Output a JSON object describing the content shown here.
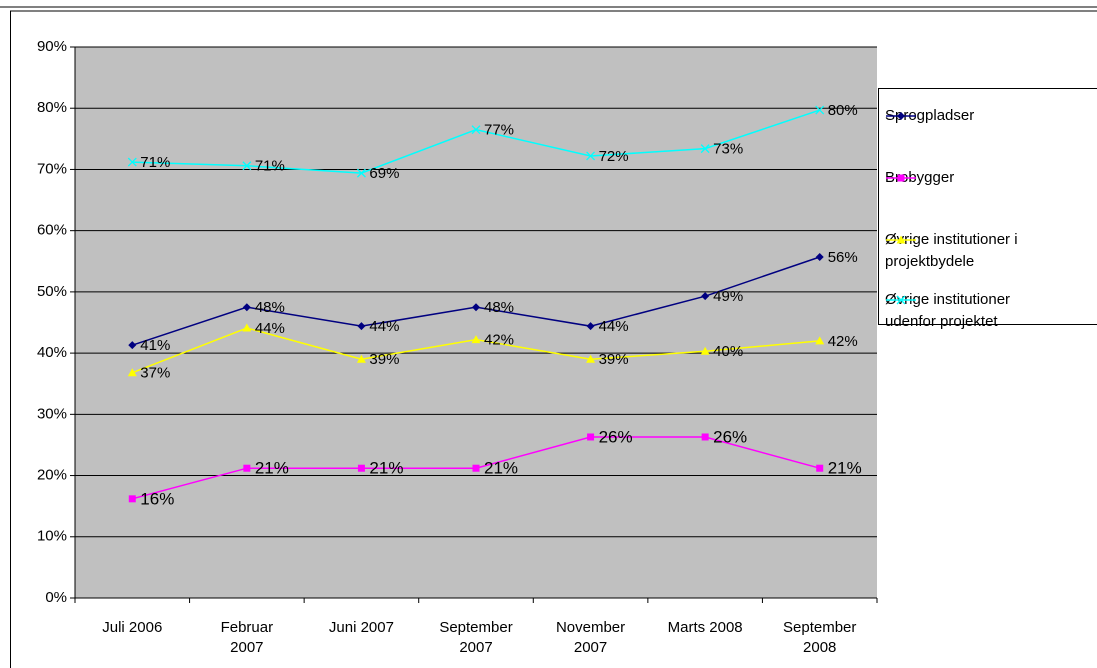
{
  "chart_data": {
    "type": "line",
    "categories": [
      "Juli 2006",
      "Februar 2007",
      "Juni 2007",
      "September 2007",
      "November 2007",
      "Marts 2008",
      "September 2008"
    ],
    "series": [
      {
        "name": "Sprogpladser",
        "color": "#000080",
        "marker": "diamond",
        "values": [
          41.3,
          47.5,
          44.4,
          47.5,
          44.4,
          49.3,
          55.7
        ],
        "value_labels": [
          "41%",
          "48%",
          "44%",
          "48%",
          "44%",
          "49%",
          "56%"
        ]
      },
      {
        "name": "Brobygger",
        "color": "#ff00ff",
        "marker": "square",
        "values": [
          16.2,
          21.2,
          21.2,
          21.2,
          26.3,
          26.3,
          21.2
        ],
        "value_labels": [
          "16%",
          "21%",
          "21%",
          "21%",
          "26%",
          "26%",
          "21%"
        ]
      },
      {
        "name": "Øvrige institutioner i projektbydele",
        "color": "#ffff00",
        "marker": "triangle",
        "values": [
          36.8,
          44.1,
          39.0,
          42.2,
          39.0,
          40.3,
          42.0
        ],
        "value_labels": [
          "37%",
          "44%",
          "39%",
          "42%",
          "39%",
          "40%",
          "42%"
        ]
      },
      {
        "name": "Øvrige institutioner udenfor projektet",
        "color": "#00ffff",
        "marker": "x",
        "values": [
          71.2,
          70.6,
          69.4,
          76.5,
          72.2,
          73.4,
          79.7
        ],
        "value_labels": [
          "71%",
          "71%",
          "69%",
          "77%",
          "72%",
          "73%",
          "80%"
        ]
      }
    ],
    "ylim": [
      0,
      90
    ],
    "yticks": [
      {
        "value": 0,
        "label": "0%"
      },
      {
        "value": 10,
        "label": "10%"
      },
      {
        "value": 20,
        "label": "20%"
      },
      {
        "value": 30,
        "label": "30%"
      },
      {
        "value": 40,
        "label": "40%"
      },
      {
        "value": 50,
        "label": "50%"
      },
      {
        "value": 60,
        "label": "60%"
      },
      {
        "value": 70,
        "label": "70%"
      },
      {
        "value": 80,
        "label": "80%"
      },
      {
        "value": 90,
        "label": "90%"
      }
    ],
    "grid": true,
    "legend": "right"
  }
}
